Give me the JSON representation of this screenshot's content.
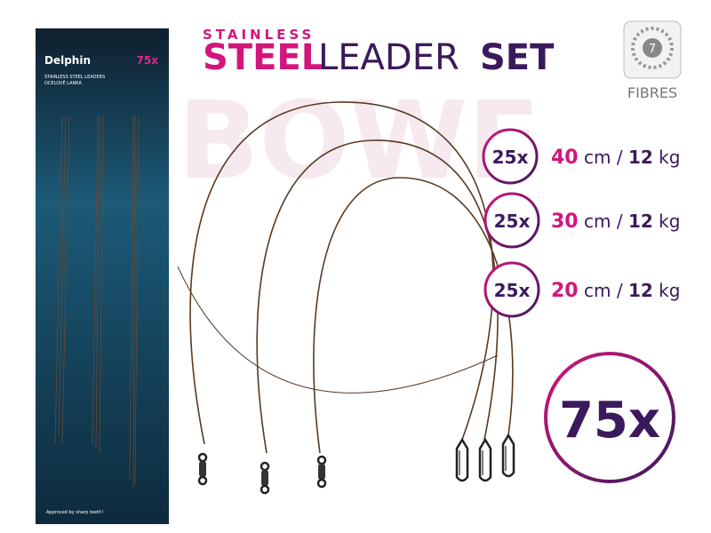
{
  "title": {
    "top": "STAINLESS",
    "steel": "STEEL",
    "leader": "LEADER",
    "set": "SET"
  },
  "badge": {
    "number": "7",
    "label": "FIBRES"
  },
  "package": {
    "brand": "Delphin",
    "count": "75x",
    "line1": "STAINLESS STEEL LEADERS",
    "line2": "OCELOVÉ LANKA",
    "footer": "Approved by sharp teeth!"
  },
  "rows": [
    {
      "count": "25x",
      "length": "40",
      "length_unit": "cm",
      "separator": "/",
      "weight": "12",
      "weight_unit": "kg"
    },
    {
      "count": "25x",
      "length": "30",
      "length_unit": "cm",
      "separator": "/",
      "weight": "12",
      "weight_unit": "kg"
    },
    {
      "count": "25x",
      "length": "20",
      "length_unit": "cm",
      "separator": "/",
      "weight": "12",
      "weight_unit": "kg"
    }
  ],
  "total": "75x"
}
